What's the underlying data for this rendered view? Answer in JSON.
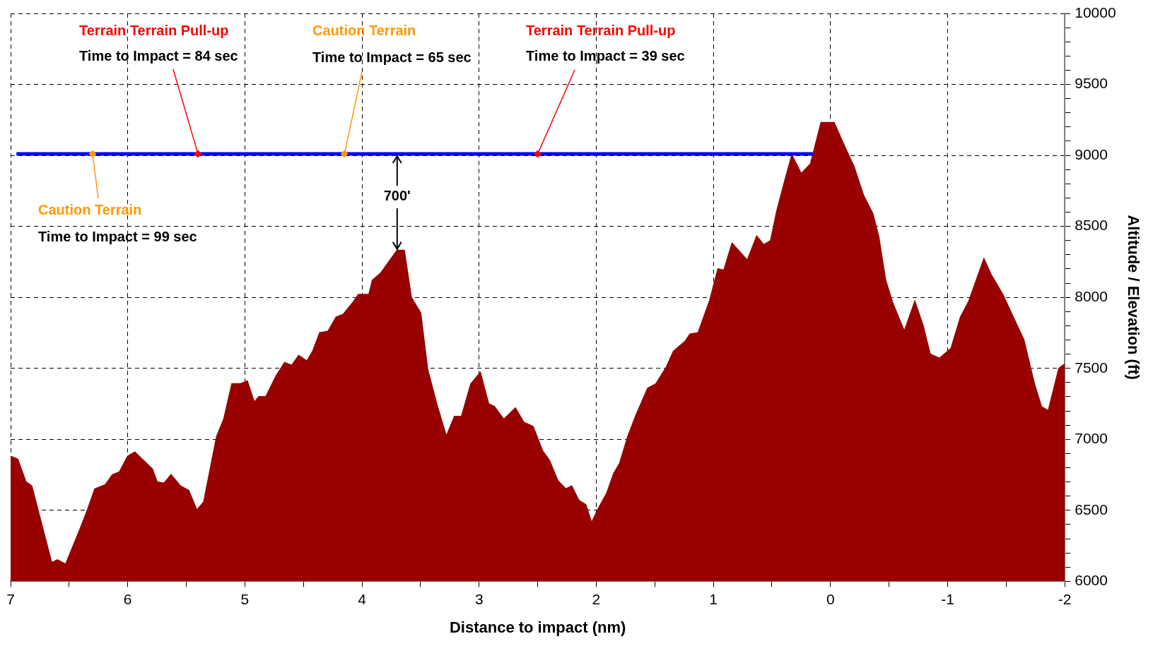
{
  "chart_data": {
    "type": "area",
    "xlabel": "Distance to impact (nm)",
    "ylabel": "Altitude / Elevation (ft)",
    "xlim": [
      7,
      -2
    ],
    "xticks": [
      7,
      {
        "value": 6.5,
        "label": null
      },
      6,
      {
        "value": 5.5,
        "label": null
      },
      5,
      {
        "value": 4.5,
        "label": null
      },
      4,
      {
        "value": 3.5,
        "label": null
      },
      3,
      {
        "value": 2.5,
        "label": null
      },
      2,
      {
        "value": 1.5,
        "label": null
      },
      1,
      {
        "value": 0.5,
        "label": null
      },
      0,
      {
        "value": -0.5,
        "label": null
      },
      -1,
      {
        "value": -1.5,
        "label": null
      },
      -2
    ],
    "ylim": [
      6000,
      10000
    ],
    "yticks": [
      6000,
      {
        "value": 6100,
        "label": null
      },
      {
        "value": 6200,
        "label": null
      },
      {
        "value": 6300,
        "label": null
      },
      {
        "value": 6400,
        "label": null
      },
      6500,
      {
        "value": 6600,
        "label": null
      },
      {
        "value": 6700,
        "label": null
      },
      {
        "value": 6800,
        "label": null
      },
      {
        "value": 6900,
        "label": null
      },
      7000,
      {
        "value": 7100,
        "label": null
      },
      {
        "value": 7200,
        "label": null
      },
      {
        "value": 7300,
        "label": null
      },
      {
        "value": 7400,
        "label": null
      },
      7500,
      {
        "value": 7600,
        "label": null
      },
      {
        "value": 7700,
        "label": null
      },
      {
        "value": 7800,
        "label": null
      },
      {
        "value": 7900,
        "label": null
      },
      8000,
      {
        "value": 8100,
        "label": null
      },
      {
        "value": 8200,
        "label": null
      },
      {
        "value": 8300,
        "label": null
      },
      {
        "value": 8400,
        "label": null
      },
      8500,
      {
        "value": 8600,
        "label": null
      },
      {
        "value": 8700,
        "label": null
      },
      {
        "value": 8800,
        "label": null
      },
      {
        "value": 8900,
        "label": null
      },
      9000,
      {
        "value": 9100,
        "label": null
      },
      {
        "value": 9200,
        "label": null
      },
      {
        "value": 9300,
        "label": null
      },
      {
        "value": 9400,
        "label": null
      },
      9500,
      {
        "value": 9600,
        "label": null
      },
      {
        "value": 9700,
        "label": null
      },
      {
        "value": 9800,
        "label": null
      },
      {
        "value": 9900,
        "label": null
      },
      10000
    ],
    "grid": true,
    "series": [
      {
        "color": "#990000",
        "x": [
          7,
          6.94,
          6.87,
          6.82,
          6.65,
          6.6,
          6.53,
          6.41,
          6.34,
          6.28,
          6.19,
          6.13,
          6.07,
          6,
          5.94,
          5.84,
          5.79,
          5.75,
          5.69,
          5.63,
          5.55,
          5.48,
          5.41,
          5.35,
          5.24,
          5.18,
          5.11,
          5.04,
          4.98,
          4.92,
          4.88,
          4.82,
          4.73,
          4.66,
          4.6,
          4.54,
          4.47,
          4.42,
          4.36,
          4.29,
          4.22,
          4.16,
          4.08,
          4.03,
          3.94,
          3.91,
          3.84,
          3.77,
          3.7,
          3.64,
          3.58,
          3.5,
          3.44,
          3.36,
          3.28,
          3.21,
          3.15,
          3.07,
          2.99,
          2.92,
          2.87,
          2.79,
          2.69,
          2.62,
          2.54,
          2.46,
          2.4,
          2.33,
          2.26,
          2.21,
          2.15,
          2.09,
          2.04,
          1.99,
          1.91,
          1.85,
          1.8,
          1.73,
          1.66,
          1.56,
          1.49,
          1.4,
          1.34,
          1.24,
          1.2,
          1.13,
          1.03,
          0.96,
          0.91,
          0.84,
          0.71,
          0.63,
          0.57,
          0.51,
          0.46,
          0.39,
          0.33,
          0.25,
          0.17,
          0.08,
          -0.03,
          -0.11,
          -0.2,
          -0.28,
          -0.36,
          -0.41,
          -0.47,
          -0.53,
          -0.63,
          -0.72,
          -0.79,
          -0.85,
          -0.93,
          -1.03,
          -1.11,
          -1.18,
          -1.31,
          -1.37,
          -1.47,
          -1.56,
          -1.65,
          -1.74,
          -1.8,
          -1.86,
          -1.95,
          -2
        ],
        "values": [
          6880,
          6860,
          6700,
          6670,
          6130,
          6150,
          6120,
          6360,
          6510,
          6650,
          6680,
          6750,
          6770,
          6880,
          6910,
          6830,
          6790,
          6700,
          6690,
          6750,
          6670,
          6640,
          6500,
          6560,
          7020,
          7140,
          7390,
          7390,
          7410,
          7260,
          7300,
          7300,
          7450,
          7540,
          7520,
          7590,
          7550,
          7620,
          7750,
          7760,
          7860,
          7880,
          7960,
          8020,
          8020,
          8120,
          8170,
          8250,
          8330,
          8330,
          8000,
          7890,
          7490,
          7240,
          7020,
          7160,
          7160,
          7390,
          7470,
          7250,
          7230,
          7140,
          7220,
          7120,
          7090,
          6920,
          6850,
          6710,
          6650,
          6670,
          6570,
          6540,
          6410,
          6500,
          6620,
          6760,
          6830,
          7020,
          7170,
          7360,
          7390,
          7510,
          7620,
          7690,
          7740,
          7750,
          7980,
          8200,
          8190,
          8380,
          8260,
          8430,
          8370,
          8400,
          8600,
          8820,
          9000,
          8870,
          8940,
          9230,
          9230,
          9080,
          8920,
          8720,
          8590,
          8430,
          8120,
          7960,
          7760,
          7970,
          7800,
          7600,
          7570,
          7640,
          7860,
          7970,
          8270,
          8160,
          8020,
          7860,
          7700,
          7390,
          7230,
          7200,
          7500,
          7530
        ]
      },
      {
        "type": "line",
        "color": "#0000ff",
        "x": [
          6.95,
          0.15
        ],
        "values": [
          9010,
          9010
        ]
      },
      {
        "type": "scatter",
        "color": "#ff9900",
        "marker": "diamond",
        "x": [
          6.3,
          4.15
        ],
        "values": [
          9010,
          9010
        ]
      },
      {
        "type": "scatter",
        "color": "#ff0000",
        "marker": "diamond",
        "x": [
          5.4,
          2.5
        ],
        "values": [
          9010,
          9010
        ]
      }
    ],
    "annotations": [
      "Terrain Terrain Pull-up",
      {
        "text": "Time to Impact = 84 sec",
        "x": 5.4,
        "y": 9010
      },
      "Caution Terrain",
      {
        "text": "Time to Impact = 65 sec",
        "x": 4.15,
        "y": 9010
      },
      "Terrain Terrain Pull-up",
      {
        "text": "Time to Impact = 39 sec",
        "x": 2.5,
        "y": 9010
      },
      {
        "text": "Caution Terrain",
        "x": 6.3,
        "y": 9010
      },
      "Time to Impact = 99 sec",
      {
        "text": "700'",
        "x": 3.7,
        "y": 8330
      }
    ]
  }
}
